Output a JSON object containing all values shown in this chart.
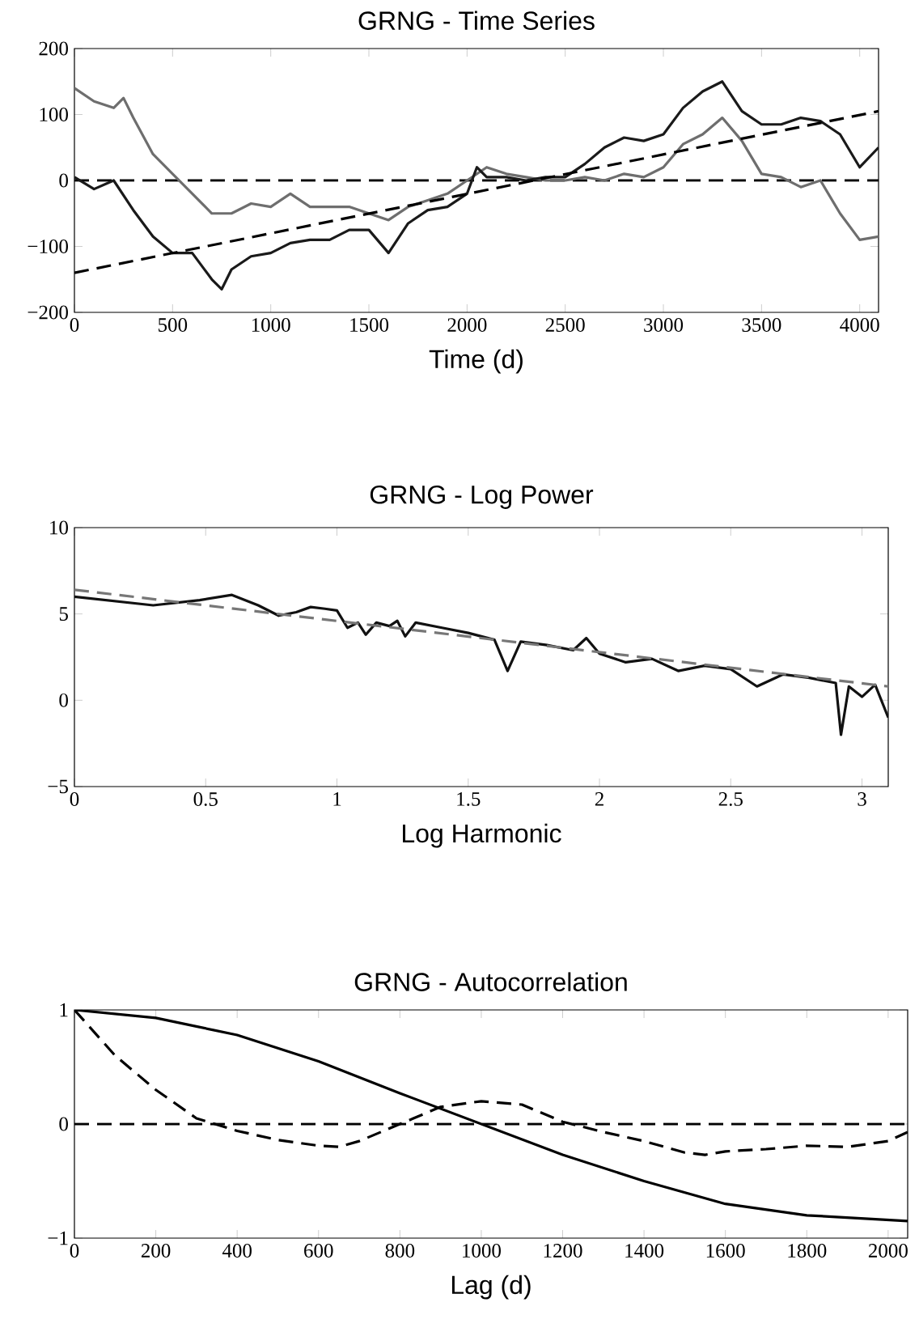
{
  "chart_data": [
    {
      "type": "line",
      "title": "GRNG - Time Series",
      "xlabel": "Time (d)",
      "xlim": [
        0,
        4096
      ],
      "ylim": [
        -200,
        200
      ],
      "xticks": [
        0,
        500,
        1000,
        1500,
        2000,
        2500,
        3000,
        3500,
        4000
      ],
      "yticks": [
        {
          "value": -200,
          "label": "−200"
        },
        {
          "value": -100,
          "label": "−100"
        },
        0,
        100,
        200
      ],
      "marker": "none",
      "ref_lines": [
        {
          "axis": "y",
          "value": 0,
          "color": "#000000",
          "line_style": "dashed"
        }
      ],
      "series": [
        {
          "color": "#6e6e6e",
          "line_style": "solid",
          "x": [
            0,
            100,
            200,
            250,
            300,
            400,
            500,
            600,
            700,
            800,
            900,
            1000,
            1100,
            1200,
            1300,
            1400,
            1500,
            1600,
            1700,
            1800,
            1900,
            2000,
            2100,
            2200,
            2300,
            2400,
            2500,
            2600,
            2700,
            2800,
            2900,
            3000,
            3100,
            3200,
            3300,
            3400,
            3500,
            3600,
            3700,
            3800,
            3900,
            4000,
            4096
          ],
          "values": [
            140,
            120,
            110,
            125,
            95,
            40,
            10,
            -20,
            -50,
            -50,
            -35,
            -40,
            -20,
            -40,
            -40,
            -40,
            -50,
            -60,
            -40,
            -30,
            -20,
            0,
            20,
            10,
            5,
            0,
            0,
            5,
            0,
            10,
            5,
            20,
            55,
            70,
            95,
            60,
            10,
            5,
            -10,
            0,
            -50,
            -90,
            -85
          ]
        },
        {
          "color": "#1a1a1a",
          "line_style": "solid",
          "x": [
            0,
            100,
            200,
            300,
            400,
            500,
            600,
            700,
            750,
            800,
            900,
            1000,
            1100,
            1200,
            1300,
            1400,
            1500,
            1600,
            1700,
            1800,
            1900,
            2000,
            2050,
            2100,
            2200,
            2300,
            2400,
            2500,
            2600,
            2700,
            2800,
            2900,
            3000,
            3100,
            3200,
            3300,
            3400,
            3500,
            3600,
            3700,
            3800,
            3900,
            4000,
            4096
          ],
          "values": [
            5,
            -13,
            0,
            -45,
            -85,
            -110,
            -110,
            -150,
            -165,
            -135,
            -115,
            -110,
            -95,
            -90,
            -90,
            -75,
            -75,
            -110,
            -65,
            -45,
            -40,
            -20,
            20,
            5,
            5,
            0,
            5,
            5,
            25,
            50,
            65,
            60,
            70,
            110,
            135,
            150,
            105,
            85,
            85,
            95,
            90,
            70,
            20,
            50
          ]
        },
        {
          "color": "#000000",
          "line_style": "dashed",
          "x": [
            0,
            4096
          ],
          "values": [
            -140,
            105
          ]
        }
      ]
    },
    {
      "type": "line",
      "title": "GRNG - Log Power",
      "xlabel": "Log Harmonic",
      "xlim": [
        0,
        3.1
      ],
      "ylim": [
        -5,
        10
      ],
      "xticks": [
        0,
        0.5,
        1,
        1.5,
        2,
        2.5,
        3
      ],
      "yticks": [
        {
          "value": -5,
          "label": "−5"
        },
        0,
        5,
        10
      ],
      "marker": "none",
      "series": [
        {
          "color": "#111111",
          "line_style": "solid",
          "x": [
            0,
            0.3,
            0.477,
            0.6,
            0.7,
            0.778,
            0.845,
            0.9,
            0.954,
            1.0,
            1.04,
            1.08,
            1.11,
            1.15,
            1.2,
            1.23,
            1.26,
            1.3,
            1.4,
            1.5,
            1.6,
            1.65,
            1.7,
            1.8,
            1.9,
            1.95,
            2.0,
            2.1,
            2.2,
            2.3,
            2.4,
            2.5,
            2.6,
            2.7,
            2.8,
            2.9,
            2.92,
            2.95,
            3.0,
            3.05,
            3.1
          ],
          "values": [
            6.0,
            5.5,
            5.8,
            6.1,
            5.5,
            4.9,
            5.1,
            5.4,
            5.3,
            5.2,
            4.2,
            4.5,
            3.8,
            4.5,
            4.3,
            4.6,
            3.7,
            4.5,
            4.2,
            3.9,
            3.5,
            1.7,
            3.4,
            3.2,
            2.9,
            3.6,
            2.7,
            2.2,
            2.4,
            1.7,
            2.0,
            1.8,
            0.8,
            1.5,
            1.3,
            1.0,
            -2.0,
            0.8,
            0.2,
            0.9,
            -1.0
          ]
        },
        {
          "color": "#777777",
          "line_style": "dashed",
          "x": [
            0,
            3.1
          ],
          "values": [
            6.4,
            0.8
          ]
        }
      ]
    },
    {
      "type": "line",
      "title": "GRNG - Autocorrelation",
      "xlabel": "Lag (d)",
      "xlim": [
        0,
        2048
      ],
      "ylim": [
        -1,
        1
      ],
      "xticks": [
        0,
        200,
        400,
        600,
        800,
        1000,
        1200,
        1400,
        1600,
        1800,
        2000
      ],
      "yticks": [
        {
          "value": -1,
          "label": "−1"
        },
        0,
        1
      ],
      "marker": "none",
      "ref_lines": [
        {
          "axis": "y",
          "value": 0,
          "color": "#000000",
          "line_style": "dashed"
        }
      ],
      "series": [
        {
          "color": "#000000",
          "line_style": "solid",
          "x": [
            0,
            200,
            400,
            600,
            800,
            1000,
            1200,
            1400,
            1600,
            1800,
            2048
          ],
          "values": [
            1,
            0.93,
            0.78,
            0.55,
            0.27,
            0.0,
            -0.27,
            -0.5,
            -0.7,
            -0.8,
            -0.85
          ]
        },
        {
          "color": "#000000",
          "line_style": "dashed",
          "x": [
            0,
            100,
            200,
            300,
            400,
            500,
            600,
            650,
            700,
            800,
            900,
            1000,
            1100,
            1200,
            1300,
            1400,
            1500,
            1550,
            1600,
            1700,
            1800,
            1900,
            2000,
            2048
          ],
          "values": [
            1,
            0.6,
            0.3,
            0.05,
            -0.06,
            -0.14,
            -0.19,
            -0.2,
            -0.15,
            0.0,
            0.15,
            0.2,
            0.17,
            0.02,
            -0.07,
            -0.15,
            -0.25,
            -0.27,
            -0.24,
            -0.22,
            -0.19,
            -0.2,
            -0.15,
            -0.07
          ]
        }
      ]
    }
  ]
}
